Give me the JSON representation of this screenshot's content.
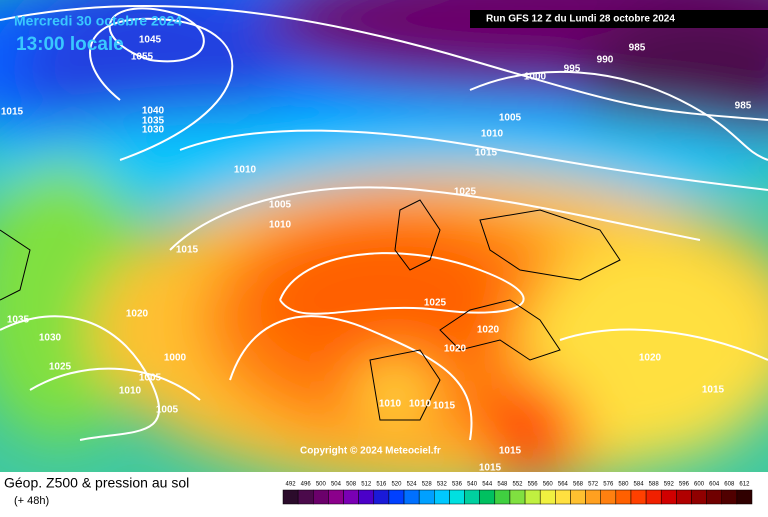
{
  "header": {
    "date": "Mercredi 30 octobre 2024",
    "time": "13:00 locale",
    "run": "Run GFS 12 Z du Lundi 28 octobre 2024"
  },
  "copyright": "Copyright © 2024 Meteociel.fr",
  "footer": {
    "title": "Géop. Z500 & pression au sol",
    "lead": "(+ 48h)"
  },
  "legend": {
    "labels": [
      492,
      496,
      500,
      504,
      508,
      512,
      516,
      520,
      524,
      528,
      532,
      536,
      540,
      544,
      548,
      552,
      556,
      560,
      564,
      568,
      572,
      576,
      580,
      584,
      588,
      592,
      596,
      600,
      604,
      608,
      612
    ],
    "colors": [
      "#2b0b2b",
      "#4b0a4b",
      "#6b006b",
      "#8b008b",
      "#7a00b4",
      "#4b00c8",
      "#1a1ad8",
      "#0040ff",
      "#0070ff",
      "#00a0ff",
      "#00c8ff",
      "#00e0e0",
      "#00d0a0",
      "#00c060",
      "#40d040",
      "#80e040",
      "#c0f040",
      "#f0f040",
      "#ffe040",
      "#ffc030",
      "#ffa020",
      "#ff8010",
      "#ff6000",
      "#ff4000",
      "#f02000",
      "#d00000",
      "#b00000",
      "#900000",
      "#700000",
      "#500000",
      "#300000"
    ]
  },
  "isobar_labels": [
    "1015",
    "1010",
    "1005",
    "1010",
    "1015",
    "1020",
    "1035",
    "1030",
    "1025",
    "1000",
    "1005",
    "1010",
    "1005",
    "1025",
    "1025",
    "1020",
    "1020",
    "1010",
    "1010",
    "1015",
    "1015",
    "1015",
    "1010",
    "1005",
    "1015",
    "1000",
    "995",
    "990",
    "985",
    "985",
    "1020",
    "1015",
    "1045",
    "1040",
    "1035",
    "1030",
    "1055"
  ]
}
